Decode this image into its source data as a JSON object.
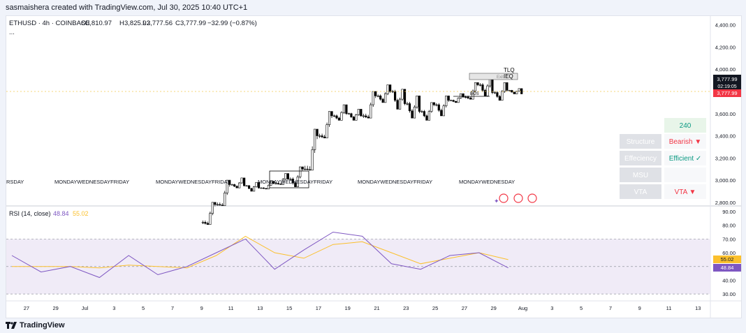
{
  "header": {
    "credit": "sasmaishera created with TradingView.com, Jul 30, 2025 10:40 UTC+1",
    "symbol": "ETHUSD · 4h · COINBASE",
    "o_label": "O",
    "o": "3,810.97",
    "h_label": "H",
    "h": "3,825.92",
    "l_label": "L",
    "l": "3,777.56",
    "c_label": "C",
    "c": "3,777.99",
    "change": "−32.99 (−0.87%)",
    "ellipsis": "..."
  },
  "price_axis": {
    "ticks": [
      "4,400.00",
      "4,200.00",
      "4,000.00",
      "3,800.00",
      "3,600.00",
      "3,400.00",
      "3,200.00",
      "3,000.00",
      "2,800.00"
    ],
    "last_price": "3,777.99",
    "countdown": "02:19:05",
    "ref_price": "3,777.99"
  },
  "rsi": {
    "label": "RSI (14, close)",
    "rsi_value": "48.84",
    "ma_value": "55.02",
    "ticks": [
      "90.00",
      "80.00",
      "70.00",
      "60.00",
      "50.00",
      "40.00",
      "30.00"
    ]
  },
  "time_axis": {
    "ticks": [
      "27",
      "29",
      "Jul",
      "3",
      "5",
      "7",
      "9",
      "11",
      "13",
      "15",
      "17",
      "19",
      "21",
      "23",
      "25",
      "27",
      "29",
      "Aug",
      "3",
      "5",
      "7",
      "9",
      "11",
      "13"
    ]
  },
  "annotations": {
    "tlq": "TLQ",
    "ieq": "IEQ",
    "exit": "Exit",
    "bos": "BOS",
    "day_groups": [
      "RSDAY",
      "MONDAYWEDNESDAYFRIDAY",
      "MONDAYWEDNESDAYFRIDAY",
      "MONDAYWEDNESDAYFRIDAY",
      "MONDAYWEDNESDAYFRIDAY",
      "MONDAYWEDNESDAY"
    ]
  },
  "table": {
    "tf": "240",
    "rows": [
      {
        "label": "Structure",
        "value": "Bearish ▼"
      },
      {
        "label": "Effeciency",
        "value": "Efficient ✓"
      },
      {
        "label": "MSU",
        "value": ""
      },
      {
        "label": "VTA",
        "value": "VTA ▼"
      }
    ]
  },
  "footer": {
    "brand": "TradingView"
  },
  "colors": {
    "up": "#ffffff",
    "down": "#000000",
    "rsi_line": "#7e57c2",
    "rsi_ma": "#fbc02d",
    "rsi_band": "#ede7f6",
    "bearish": "#f23645",
    "efficient": "#089981",
    "last_price_bg": "#131722",
    "ref_price_bg": "#f23645"
  },
  "chart_data": [
    {
      "type": "candlestick",
      "title": "ETHUSD · 4h · COINBASE",
      "ylim": [
        2780,
        4480
      ],
      "x_start": "Jun 26",
      "x_end": "Jul 30",
      "daily_ohlc": [
        {
          "date": "Jul 9",
          "o": 2620,
          "h": 2800,
          "l": 2600,
          "c": 2780
        },
        {
          "date": "Jul 10",
          "o": 2780,
          "h": 3000,
          "l": 2770,
          "c": 2960
        },
        {
          "date": "Jul 11",
          "o": 2960,
          "h": 3020,
          "l": 2930,
          "c": 2950
        },
        {
          "date": "Jul 12",
          "o": 2950,
          "h": 2980,
          "l": 2900,
          "c": 2930
        },
        {
          "date": "Jul 13",
          "o": 2930,
          "h": 2990,
          "l": 2920,
          "c": 2970
        },
        {
          "date": "Jul 14",
          "o": 2970,
          "h": 3060,
          "l": 2960,
          "c": 3010
        },
        {
          "date": "Jul 15",
          "o": 3010,
          "h": 3120,
          "l": 2940,
          "c": 3100
        },
        {
          "date": "Jul 16",
          "o": 3100,
          "h": 3460,
          "l": 3090,
          "c": 3400
        },
        {
          "date": "Jul 17",
          "o": 3400,
          "h": 3620,
          "l": 3380,
          "c": 3580
        },
        {
          "date": "Jul 18",
          "o": 3580,
          "h": 3680,
          "l": 3540,
          "c": 3600
        },
        {
          "date": "Jul 19",
          "o": 3600,
          "h": 3640,
          "l": 3540,
          "c": 3580
        },
        {
          "date": "Jul 20",
          "o": 3580,
          "h": 3800,
          "l": 3560,
          "c": 3760
        },
        {
          "date": "Jul 21",
          "o": 3760,
          "h": 3860,
          "l": 3700,
          "c": 3800
        },
        {
          "date": "Jul 22",
          "o": 3800,
          "h": 3820,
          "l": 3640,
          "c": 3690
        },
        {
          "date": "Jul 23",
          "o": 3690,
          "h": 3760,
          "l": 3560,
          "c": 3620
        },
        {
          "date": "Jul 24",
          "o": 3620,
          "h": 3700,
          "l": 3540,
          "c": 3680
        },
        {
          "date": "Jul 25",
          "o": 3680,
          "h": 3760,
          "l": 3580,
          "c": 3720
        },
        {
          "date": "Jul 26",
          "o": 3720,
          "h": 3780,
          "l": 3700,
          "c": 3750
        },
        {
          "date": "Jul 27",
          "o": 3750,
          "h": 3880,
          "l": 3730,
          "c": 3860
        },
        {
          "date": "Jul 28",
          "o": 3860,
          "h": 3940,
          "l": 3760,
          "c": 3790
        },
        {
          "date": "Jul 29",
          "o": 3790,
          "h": 3880,
          "l": 3720,
          "c": 3810
        },
        {
          "date": "Jul 30",
          "o": 3810,
          "h": 3826,
          "l": 3778,
          "c": 3778
        }
      ]
    },
    {
      "type": "line",
      "title": "RSI (14, close)",
      "ylim": [
        26,
        92
      ],
      "x": [
        "Jun 26",
        "Jun 28",
        "Jun 30",
        "Jul 2",
        "Jul 4",
        "Jul 6",
        "Jul 8",
        "Jul 10",
        "Jul 12",
        "Jul 14",
        "Jul 16",
        "Jul 18",
        "Jul 20",
        "Jul 22",
        "Jul 24",
        "Jul 26",
        "Jul 28",
        "Jul 30"
      ],
      "series": [
        {
          "name": "RSI",
          "values": [
            58,
            46,
            50,
            42,
            58,
            44,
            50,
            60,
            70,
            48,
            62,
            75,
            72,
            52,
            48,
            58,
            60,
            49
          ]
        },
        {
          "name": "MA",
          "values": [
            50,
            50,
            50,
            49,
            51,
            50,
            49,
            58,
            72,
            60,
            56,
            66,
            68,
            60,
            52,
            56,
            60,
            55
          ]
        }
      ],
      "bands": [
        30,
        50,
        70
      ]
    }
  ]
}
